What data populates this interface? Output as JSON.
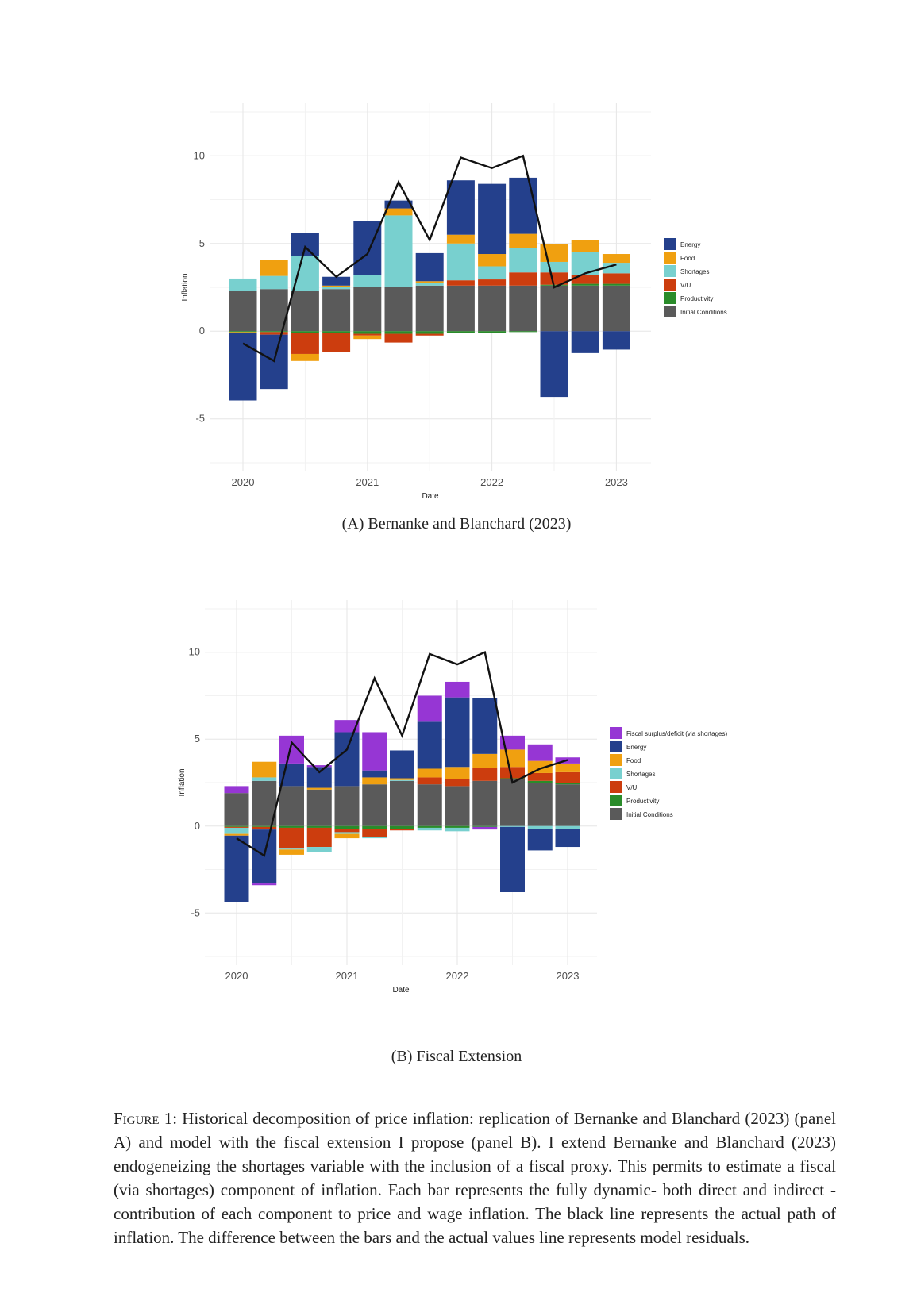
{
  "panels": [
    {
      "id": "A",
      "caption_label": "(A)",
      "caption_text": "Bernanke and Blanchard (2023)",
      "chart_data": {
        "type": "bar",
        "stacked": true,
        "title": "",
        "xlabel": "Date",
        "ylabel": "Inflation",
        "ylim": [
          -8,
          13
        ],
        "yticks": [
          -5,
          0,
          5,
          10
        ],
        "xticks": [
          {
            "label": "2020",
            "pos": 0
          },
          {
            "label": "2021",
            "pos": 4
          },
          {
            "label": "2022",
            "pos": 8
          },
          {
            "label": "2023",
            "pos": 12
          }
        ],
        "grid": true,
        "legend_position": "right",
        "series": [
          {
            "name": "Initial Conditions",
            "color": "#5a5a5a",
            "values": [
              2.3,
              2.4,
              2.3,
              2.4,
              2.5,
              2.5,
              2.6,
              2.6,
              2.6,
              2.6,
              2.6,
              2.6,
              2.6
            ]
          },
          {
            "name": "Productivity",
            "color": "#2a8c2a",
            "values": [
              -0.05,
              -0.05,
              -0.1,
              -0.1,
              -0.15,
              -0.15,
              -0.15,
              -0.1,
              -0.1,
              -0.05,
              0.05,
              0.1,
              0.1
            ]
          },
          {
            "name": "V/U",
            "color": "#cc3d0e",
            "values": [
              0.0,
              -0.15,
              -1.2,
              -1.1,
              -0.1,
              -0.5,
              -0.1,
              0.3,
              0.35,
              0.75,
              0.7,
              0.5,
              0.6
            ]
          },
          {
            "name": "Shortages",
            "color": "#78d0cf",
            "values": [
              0.7,
              0.75,
              2.0,
              0.1,
              0.7,
              4.1,
              0.15,
              2.1,
              0.75,
              1.4,
              0.6,
              1.3,
              0.6
            ]
          },
          {
            "name": "Food",
            "color": "#f0a010",
            "values": [
              -0.05,
              0.9,
              -0.4,
              0.1,
              -0.2,
              0.4,
              0.1,
              0.5,
              0.7,
              0.8,
              1.0,
              0.7,
              0.5
            ]
          },
          {
            "name": "Energy",
            "color": "#24408c",
            "values": [
              -3.85,
              -3.1,
              1.3,
              0.5,
              3.1,
              0.45,
              1.6,
              3.1,
              4.0,
              3.2,
              -3.75,
              -1.25,
              -1.05
            ]
          }
        ],
        "line": {
          "name": "Actual inflation",
          "color": "#111111",
          "values": [
            -0.7,
            -1.7,
            4.8,
            3.1,
            4.4,
            8.5,
            5.2,
            9.9,
            9.3,
            10.0,
            2.5,
            3.3,
            3.8
          ]
        }
      }
    },
    {
      "id": "B",
      "caption_label": "(B)",
      "caption_text": "Fiscal Extension",
      "chart_data": {
        "type": "bar",
        "stacked": true,
        "title": "",
        "xlabel": "Date",
        "ylabel": "Inflation",
        "ylim": [
          -8,
          13
        ],
        "yticks": [
          -5,
          0,
          5,
          10
        ],
        "xticks": [
          {
            "label": "2020",
            "pos": 0
          },
          {
            "label": "2021",
            "pos": 4
          },
          {
            "label": "2022",
            "pos": 8
          },
          {
            "label": "2023",
            "pos": 12
          }
        ],
        "grid": true,
        "legend_position": "right",
        "series": [
          {
            "name": "Initial Conditions",
            "color": "#5a5a5a",
            "values": [
              1.9,
              2.6,
              2.3,
              2.1,
              2.3,
              2.4,
              2.6,
              2.4,
              2.3,
              2.6,
              2.7,
              2.5,
              2.4
            ]
          },
          {
            "name": "Productivity",
            "color": "#2a8c2a",
            "values": [
              -0.05,
              -0.05,
              -0.1,
              -0.1,
              -0.15,
              -0.15,
              -0.15,
              -0.1,
              -0.1,
              -0.05,
              0.05,
              0.1,
              0.1
            ]
          },
          {
            "name": "V/U",
            "color": "#cc3d0e",
            "values": [
              -0.05,
              -0.15,
              -1.2,
              -1.1,
              -0.2,
              -0.5,
              -0.1,
              0.4,
              0.4,
              0.75,
              0.65,
              0.45,
              0.6
            ]
          },
          {
            "name": "Shortages",
            "color": "#78d0cf",
            "values": [
              -0.35,
              0.2,
              -0.05,
              -0.3,
              -0.1,
              -0.05,
              0.05,
              -0.15,
              -0.2,
              0.0,
              -0.05,
              -0.15,
              -0.15
            ]
          },
          {
            "name": "Food",
            "color": "#f0a010",
            "values": [
              -0.1,
              0.9,
              -0.3,
              0.1,
              -0.25,
              0.4,
              0.1,
              0.5,
              0.7,
              0.8,
              1.0,
              0.7,
              0.5
            ]
          },
          {
            "name": "Energy",
            "color": "#24408c",
            "values": [
              -3.8,
              -3.1,
              1.3,
              1.2,
              3.1,
              0.4,
              1.6,
              2.7,
              4.0,
              3.2,
              -3.75,
              -1.25,
              -1.05
            ]
          },
          {
            "name": "Fiscal surplus/deficit (via shortages)",
            "color": "#9636d4",
            "values": [
              0.4,
              -0.1,
              1.6,
              0.1,
              0.7,
              2.2,
              0.0,
              1.5,
              0.9,
              -0.15,
              0.8,
              0.95,
              0.35
            ]
          }
        ],
        "line": {
          "name": "Actual inflation",
          "color": "#111111",
          "values": [
            -0.7,
            -1.7,
            4.8,
            3.1,
            4.4,
            8.5,
            5.2,
            9.9,
            9.3,
            10.0,
            2.5,
            3.3,
            3.8
          ]
        }
      }
    }
  ],
  "figure_caption": {
    "label": "Figure 1:",
    "text": "Historical decomposition of price inflation: replication of Bernanke and Blanchard (2023) (panel A) and model with the fiscal extension I propose (panel B). I extend Bernanke and Blanchard (2023) endogeneizing the shortages variable with the inclusion of a fiscal proxy. This permits to estimate a fiscal (via shortages) component of inflation. Each bar represents the fully dynamic- both direct and indirect -contribution of each component to price and wage inflation. The black line represents the actual path of inflation. The difference between the bars and the actual values line represents model residuals."
  }
}
